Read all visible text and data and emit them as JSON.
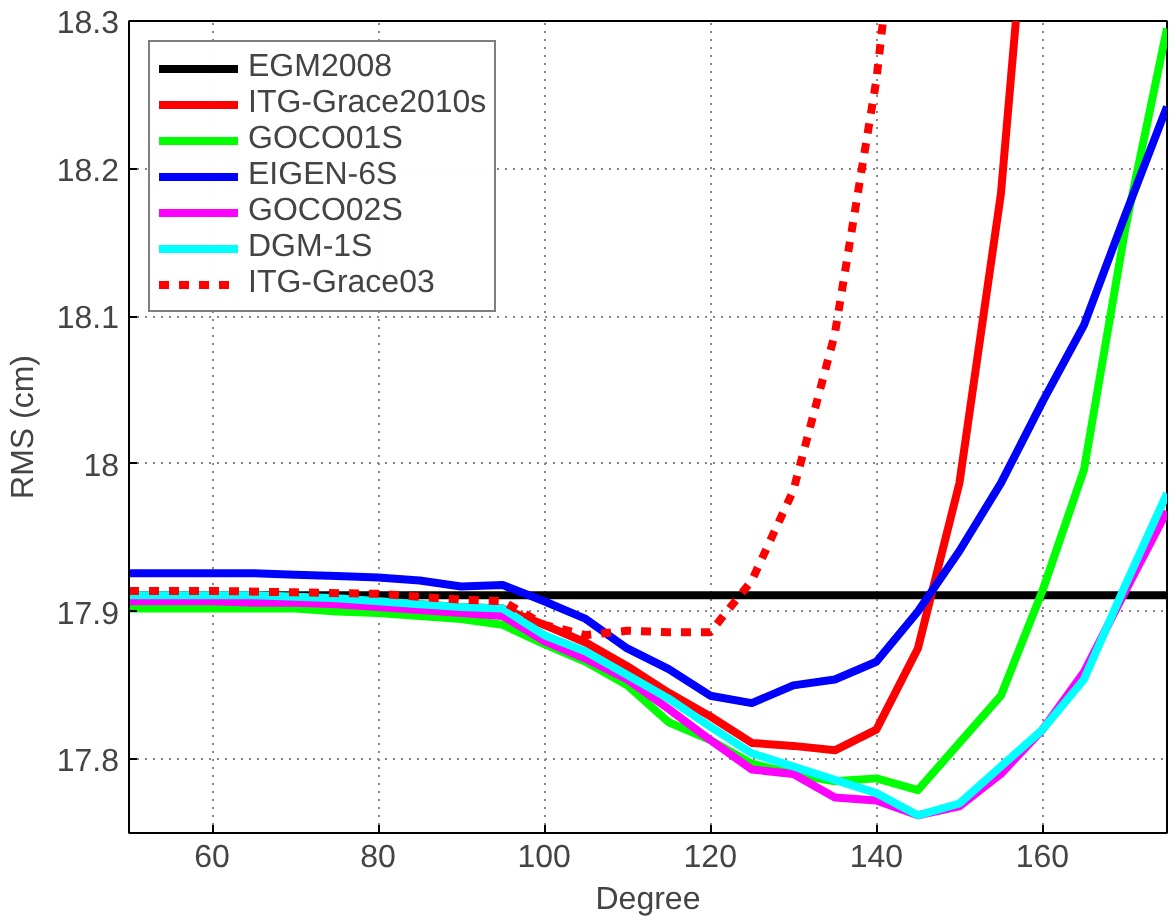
{
  "chart_data": {
    "type": "line",
    "xlabel": "Degree",
    "ylabel": "RMS (cm)",
    "x": [
      50,
      55,
      60,
      65,
      70,
      75,
      80,
      85,
      90,
      95,
      100,
      105,
      110,
      115,
      120,
      125,
      130,
      135,
      140,
      145,
      150,
      155,
      160,
      165,
      170,
      175
    ],
    "xlim": [
      50,
      175
    ],
    "ylim": [
      17.75,
      18.3
    ],
    "xticks": [
      60,
      80,
      100,
      120,
      140,
      160
    ],
    "yticks": [
      17.8,
      17.9,
      18,
      18.1,
      18.2,
      18.3
    ],
    "grid": true,
    "legend": "top left",
    "line_style": "solid",
    "series": [
      {
        "name": "EGM2008",
        "color": "#000000",
        "x": [
          50,
          175
        ],
        "values": [
          17.911,
          17.911
        ]
      },
      {
        "name": "ITG-Grace2010s",
        "color": "#ff0000",
        "x": [
          50,
          60,
          70,
          80,
          90,
          95,
          100,
          105,
          110,
          115,
          120,
          125,
          130,
          135,
          140,
          145,
          150,
          155,
          156.8
        ],
        "values": [
          17.911,
          17.911,
          17.91,
          17.907,
          17.903,
          17.902,
          17.891,
          17.879,
          17.863,
          17.845,
          17.829,
          17.811,
          17.809,
          17.806,
          17.82,
          17.875,
          17.987,
          18.183,
          18.3
        ]
      },
      {
        "name": "GOCO01S",
        "color": "#00ff00",
        "values": [
          17.902,
          17.902,
          17.902,
          17.902,
          17.902,
          17.9,
          17.899,
          17.897,
          17.895,
          17.891,
          17.878,
          17.866,
          17.85,
          17.825,
          17.813,
          17.797,
          17.79,
          17.785,
          17.787,
          17.779,
          17.811,
          17.843,
          17.914,
          17.996,
          18.16,
          18.295
        ]
      },
      {
        "name": "EIGEN-6S",
        "color": "#0000ff",
        "values": [
          17.926,
          17.926,
          17.926,
          17.926,
          17.925,
          17.924,
          17.923,
          17.921,
          17.917,
          17.918,
          17.907,
          17.895,
          17.875,
          17.861,
          17.843,
          17.838,
          17.85,
          17.854,
          17.866,
          17.9,
          17.941,
          17.987,
          18.042,
          18.094,
          18.169,
          18.242
        ]
      },
      {
        "name": "GOCO02S",
        "color": "#ff00ff",
        "values": [
          17.907,
          17.907,
          17.907,
          17.906,
          17.906,
          17.905,
          17.903,
          17.901,
          17.899,
          17.897,
          17.88,
          17.868,
          17.854,
          17.834,
          17.813,
          17.793,
          17.79,
          17.774,
          17.772,
          17.762,
          17.768,
          17.79,
          17.82,
          17.859,
          17.914,
          17.968
        ]
      },
      {
        "name": "DGM-1S",
        "color": "#00ffff",
        "values": [
          17.911,
          17.911,
          17.911,
          17.911,
          17.91,
          17.909,
          17.907,
          17.905,
          17.903,
          17.902,
          17.884,
          17.873,
          17.857,
          17.841,
          17.822,
          17.804,
          17.795,
          17.786,
          17.777,
          17.762,
          17.77,
          17.795,
          17.82,
          17.854,
          17.918,
          17.98
        ]
      },
      {
        "name": "ITG-Grace03",
        "color": "#ff0000",
        "line_style": "dotted",
        "x": [
          50,
          60,
          70,
          80,
          90,
          95,
          100,
          105,
          110,
          115,
          120,
          125,
          130,
          135,
          140,
          140.8
        ],
        "values": [
          17.914,
          17.914,
          17.913,
          17.912,
          17.908,
          17.907,
          17.891,
          17.884,
          17.887,
          17.886,
          17.886,
          17.921,
          17.982,
          18.088,
          18.26,
          18.3
        ]
      }
    ]
  }
}
